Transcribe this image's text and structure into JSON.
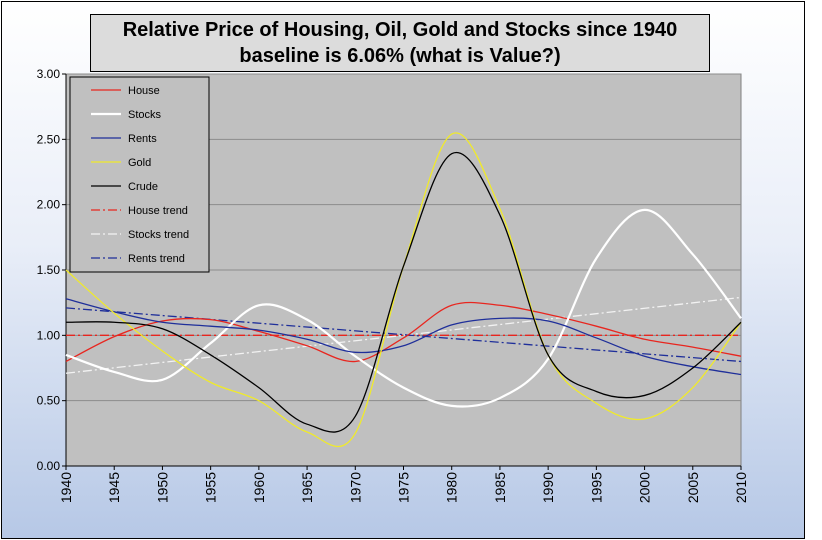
{
  "chart_data": {
    "type": "line",
    "title_line1": "Relative Price of Housing, Oil, Gold and Stocks since 1940",
    "title_line2": "baseline is 6.06% (what is Value?)",
    "xlabel": "",
    "ylabel": "",
    "xlim": [
      1940,
      2010
    ],
    "ylim": [
      0,
      3
    ],
    "x_ticks": [
      1940,
      1945,
      1950,
      1955,
      1960,
      1965,
      1970,
      1975,
      1980,
      1985,
      1990,
      1995,
      2000,
      2005,
      2010
    ],
    "y_ticks": [
      "0.00",
      "0.50",
      "1.00",
      "1.50",
      "2.00",
      "2.50",
      "3.00"
    ],
    "grid": "horizontal",
    "legend_position": "top-left",
    "plot_background": "#c0c0c0",
    "series": [
      {
        "name": "House",
        "color": "#e8261f",
        "style": "solid",
        "x": [
          1940,
          1945,
          1950,
          1955,
          1960,
          1965,
          1970,
          1975,
          1980,
          1985,
          1990,
          1995,
          2000,
          2005,
          2010
        ],
        "y": [
          0.8,
          0.99,
          1.11,
          1.12,
          1.03,
          0.92,
          0.8,
          0.98,
          1.23,
          1.23,
          1.16,
          1.07,
          0.97,
          0.91,
          0.84
        ]
      },
      {
        "name": "Stocks",
        "color": "#ffffff",
        "style": "solid",
        "x": [
          1940,
          1945,
          1950,
          1955,
          1960,
          1965,
          1970,
          1975,
          1980,
          1985,
          1990,
          1995,
          2000,
          2005,
          2010
        ],
        "y": [
          0.85,
          0.72,
          0.66,
          0.94,
          1.23,
          1.12,
          0.84,
          0.6,
          0.46,
          0.52,
          0.82,
          1.59,
          1.96,
          1.62,
          1.13
        ]
      },
      {
        "name": "Rents",
        "color": "#1f2f9a",
        "style": "solid",
        "x": [
          1940,
          1945,
          1950,
          1955,
          1960,
          1965,
          1970,
          1975,
          1980,
          1985,
          1990,
          1995,
          2000,
          2005,
          2010
        ],
        "y": [
          1.28,
          1.18,
          1.1,
          1.07,
          1.04,
          0.97,
          0.87,
          0.92,
          1.08,
          1.13,
          1.11,
          0.98,
          0.84,
          0.76,
          0.7
        ]
      },
      {
        "name": "Gold",
        "color": "#f0ea2a",
        "style": "solid",
        "x": [
          1940,
          1945,
          1950,
          1955,
          1960,
          1965,
          1970,
          1975,
          1980,
          1985,
          1990,
          1995,
          2000,
          2005,
          2010
        ],
        "y": [
          1.5,
          1.17,
          0.88,
          0.64,
          0.5,
          0.26,
          0.25,
          1.53,
          2.54,
          1.97,
          0.85,
          0.48,
          0.36,
          0.6,
          1.1
        ]
      },
      {
        "name": "Crude",
        "color": "#000000",
        "style": "solid",
        "x": [
          1940,
          1945,
          1950,
          1955,
          1960,
          1965,
          1970,
          1975,
          1980,
          1985,
          1990,
          1995,
          2000,
          2005,
          2010
        ],
        "y": [
          1.1,
          1.1,
          1.05,
          0.85,
          0.6,
          0.32,
          0.38,
          1.53,
          2.39,
          1.92,
          0.85,
          0.57,
          0.54,
          0.75,
          1.1
        ]
      },
      {
        "name": "House trend",
        "color": "#e8261f",
        "style": "dashdot",
        "x": [
          1940,
          2010
        ],
        "y": [
          1.0,
          1.0
        ]
      },
      {
        "name": "Stocks trend",
        "color": "#f2f2f2",
        "style": "dashdot",
        "x": [
          1940,
          2010
        ],
        "y": [
          0.71,
          1.29
        ]
      },
      {
        "name": "Rents trend",
        "color": "#1f2f9a",
        "style": "dashdot",
        "x": [
          1940,
          2010
        ],
        "y": [
          1.21,
          0.8
        ]
      }
    ]
  }
}
